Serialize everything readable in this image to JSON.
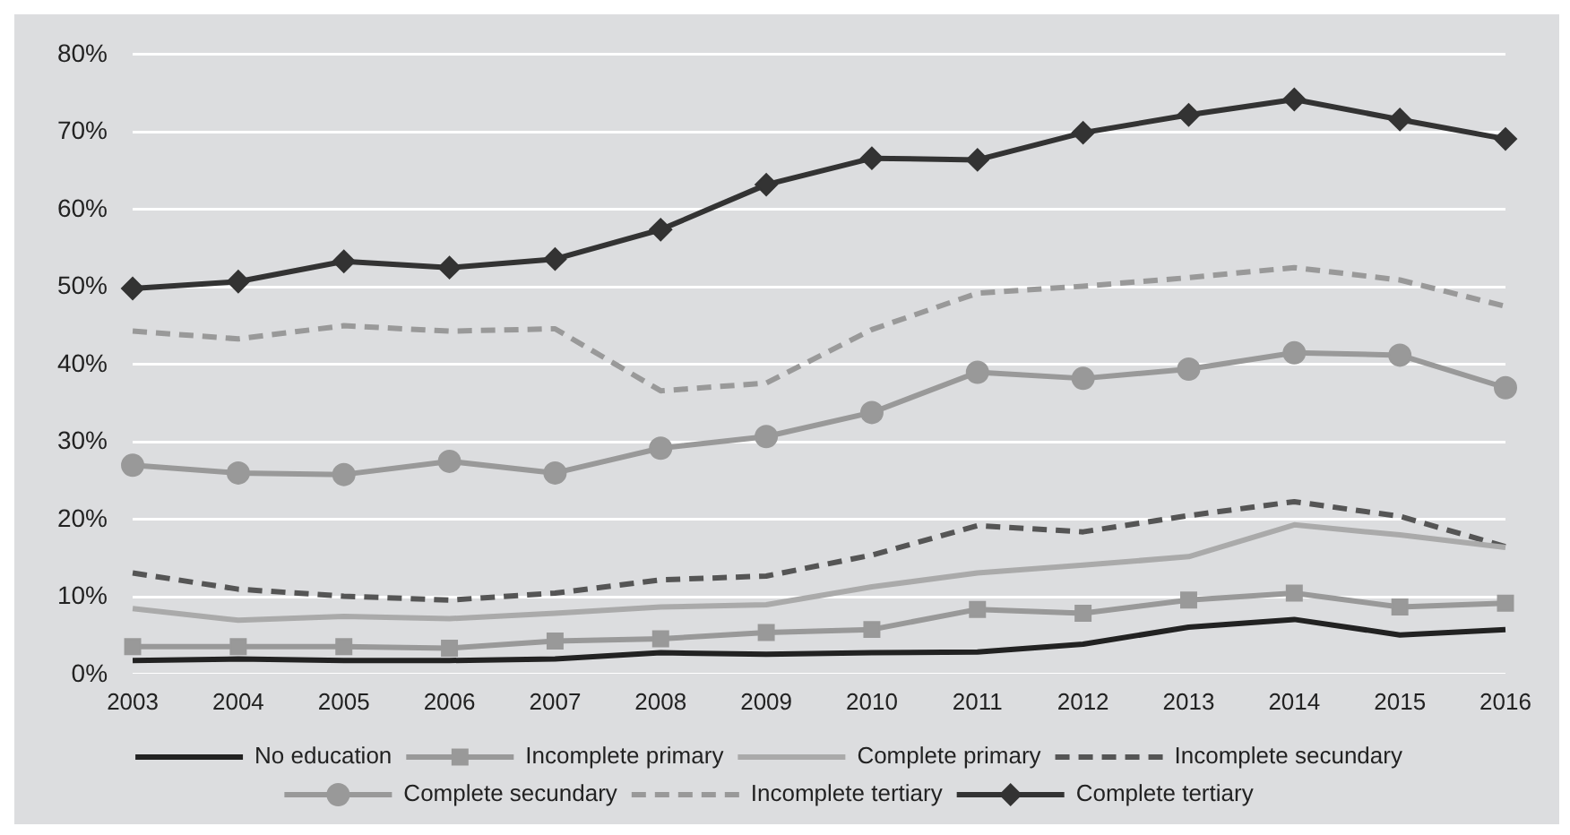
{
  "chart_data": {
    "type": "line",
    "categories": [
      "2003",
      "2004",
      "2005",
      "2006",
      "2007",
      "2008",
      "2009",
      "2010",
      "2011",
      "2012",
      "2013",
      "2014",
      "2015",
      "2016"
    ],
    "ylim": [
      0,
      80
    ],
    "yticks": [
      {
        "value": 0,
        "label": "0%"
      },
      {
        "value": 10,
        "label": "10%"
      },
      {
        "value": 20,
        "label": "20%"
      },
      {
        "value": 30,
        "label": "30%"
      },
      {
        "value": 40,
        "label": "40%"
      },
      {
        "value": 50,
        "label": "50%"
      },
      {
        "value": 60,
        "label": "60%"
      },
      {
        "value": 70,
        "label": "70%"
      },
      {
        "value": 80,
        "label": "80%"
      }
    ],
    "grid": "y",
    "legend": "bottom",
    "series": [
      {
        "name": "No education",
        "color": "#222222",
        "marker": "none",
        "line_style": "solid",
        "values": [
          1.8,
          2.0,
          1.8,
          1.8,
          2.0,
          2.8,
          2.6,
          2.8,
          2.9,
          3.9,
          6.1,
          7.1,
          5.1,
          5.8
        ]
      },
      {
        "name": "Incomplete primary",
        "color": "#999999",
        "marker": "square",
        "line_style": "solid",
        "values": [
          3.6,
          3.6,
          3.6,
          3.4,
          4.3,
          4.6,
          5.4,
          5.8,
          8.4,
          7.9,
          9.6,
          10.5,
          8.7,
          9.2
        ]
      },
      {
        "name": "Complete primary",
        "color": "#aaaaaa",
        "marker": "none",
        "line_style": "solid",
        "values": [
          8.5,
          7.0,
          7.5,
          7.2,
          7.9,
          8.7,
          9.0,
          11.3,
          13.1,
          14.1,
          15.2,
          19.3,
          18.0,
          16.4
        ]
      },
      {
        "name": "Incomplete secundary",
        "color": "#555555",
        "marker": "none",
        "line_style": "dashed",
        "values": [
          13.1,
          11.0,
          10.1,
          9.6,
          10.5,
          12.2,
          12.7,
          15.4,
          19.2,
          18.4,
          20.5,
          22.3,
          20.4,
          16.5
        ]
      },
      {
        "name": "Complete secundary",
        "color": "#999999",
        "marker": "circle",
        "line_style": "solid",
        "values": [
          27.0,
          26.0,
          25.8,
          27.5,
          26.0,
          29.2,
          30.7,
          33.8,
          39.0,
          38.2,
          39.4,
          41.5,
          41.2,
          37.0
        ]
      },
      {
        "name": "Incomplete tertiary",
        "color": "#999999",
        "marker": "none",
        "line_style": "dashed",
        "values": [
          44.3,
          43.3,
          45.0,
          44.3,
          44.6,
          36.6,
          37.6,
          44.5,
          49.2,
          50.1,
          51.2,
          52.5,
          50.9,
          47.5
        ]
      },
      {
        "name": "Complete tertiary",
        "color": "#333333",
        "marker": "diamond",
        "line_style": "solid",
        "values": [
          49.8,
          50.7,
          53.3,
          52.5,
          53.6,
          57.4,
          63.2,
          66.6,
          66.4,
          69.9,
          72.2,
          74.2,
          71.6,
          69.1
        ]
      }
    ]
  }
}
